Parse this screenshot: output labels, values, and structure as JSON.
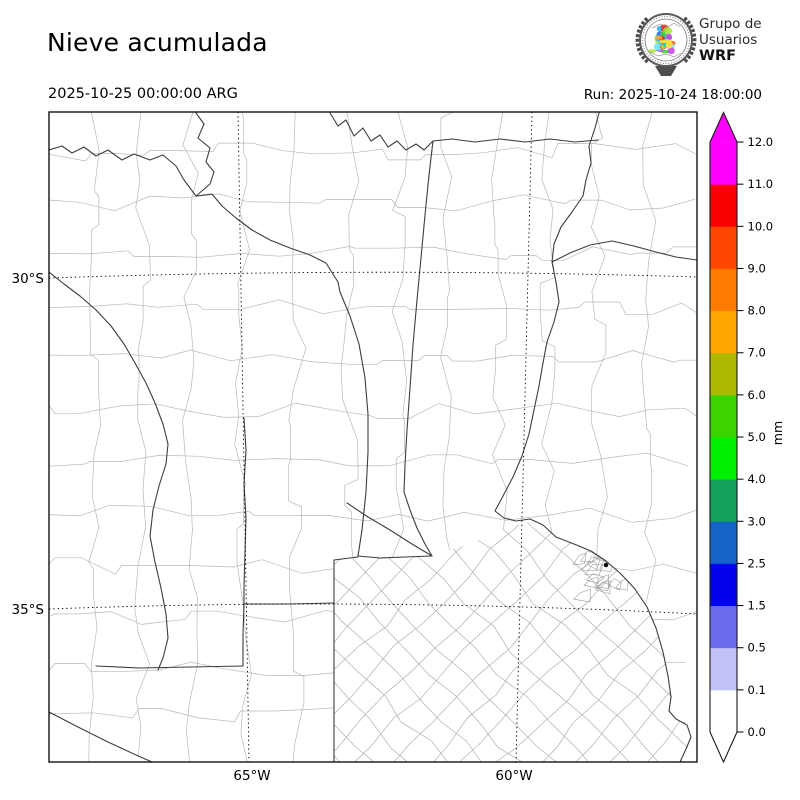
{
  "header": {
    "title": "Nieve acumulada",
    "valid_time": "2025-10-25 00:00:00 ARG",
    "run_label": "Run: 2025-10-24 18:00:00"
  },
  "logo": {
    "line1": "Grupo de",
    "line2": "Usuarios",
    "line3": "WRF"
  },
  "map": {
    "lat_labels": [
      "30°S",
      "35°S"
    ],
    "lon_labels": [
      "65°W",
      "60°W"
    ]
  },
  "colorbar": {
    "unit": "mm",
    "levels": [
      "0.0",
      "0.1",
      "0.5",
      "1.5",
      "2.5",
      "3.0",
      "4.0",
      "5.0",
      "6.0",
      "7.0",
      "8.0",
      "9.0",
      "10.0",
      "11.0",
      "12.0"
    ],
    "band_colors": [
      "#ffffff",
      "#c2c2f6",
      "#6b6bf0",
      "#0202ec",
      "#1464c8",
      "#12a05a",
      "#00ee00",
      "#3cd400",
      "#aeb800",
      "#ffa600",
      "#ff7c00",
      "#ff4500",
      "#f80000",
      "#ff00ff"
    ],
    "extend_over": "#ff00ff",
    "extend_under": "#ffffff"
  },
  "colors": {
    "province_line": "#3d3d3d",
    "department_line": "#b8b8b8",
    "grid_line": "#000000",
    "frame": "#000000"
  }
}
